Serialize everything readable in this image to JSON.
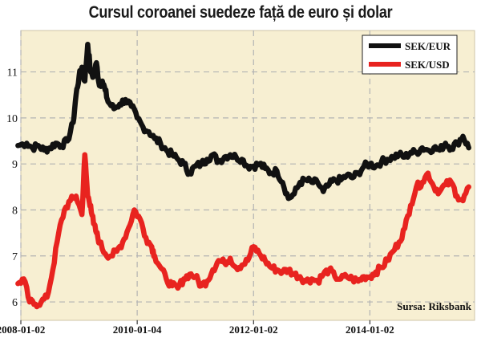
{
  "chart_data": {
    "type": "line",
    "title": "Cursul coroanei suedeze față de euro și dolar",
    "source_note": "Sursa: Riksbank",
    "xlabel": "",
    "ylabel": "",
    "x_tick_labels": [
      "2008-01-02",
      "2010-01-04",
      "2012-01-02",
      "2014-01-02"
    ],
    "y_tick_labels": [
      "6",
      "7",
      "8",
      "9",
      "10",
      "11"
    ],
    "ylim": [
      5.6,
      11.9
    ],
    "xlim": [
      2008.0,
      2015.8
    ],
    "grid": true,
    "legend_position": "top-right",
    "colors": {
      "background": "#f7efd2",
      "grid": "#b3b3b3",
      "sek_eur": "#111111",
      "sek_usd": "#e8231f"
    },
    "series": [
      {
        "name": "SEK/EUR",
        "color": "#111111",
        "x": [
          2007.95,
          2008.1,
          2008.2,
          2008.3,
          2008.4,
          2008.5,
          2008.6,
          2008.7,
          2008.8,
          2008.9,
          2008.95,
          2009.0,
          2009.05,
          2009.1,
          2009.15,
          2009.2,
          2009.25,
          2009.3,
          2009.35,
          2009.4,
          2009.45,
          2009.5,
          2009.6,
          2009.7,
          2009.8,
          2009.9,
          2010.0,
          2010.1,
          2010.2,
          2010.3,
          2010.4,
          2010.5,
          2010.6,
          2010.7,
          2010.8,
          2010.9,
          2011.0,
          2011.1,
          2011.2,
          2011.3,
          2011.4,
          2011.5,
          2011.6,
          2011.7,
          2011.8,
          2011.9,
          2012.0,
          2012.1,
          2012.2,
          2012.3,
          2012.4,
          2012.5,
          2012.6,
          2012.7,
          2012.8,
          2012.9,
          2013.0,
          2013.1,
          2013.2,
          2013.3,
          2013.4,
          2013.5,
          2013.6,
          2013.7,
          2013.8,
          2013.9,
          2014.0,
          2014.1,
          2014.2,
          2014.3,
          2014.4,
          2014.5,
          2014.6,
          2014.7,
          2014.8,
          2014.9,
          2015.0,
          2015.1,
          2015.2,
          2015.3,
          2015.4,
          2015.5,
          2015.6,
          2015.7
        ],
        "values": [
          9.4,
          9.45,
          9.35,
          9.4,
          9.3,
          9.35,
          9.45,
          9.4,
          9.5,
          9.9,
          10.5,
          10.9,
          11.1,
          10.8,
          11.6,
          11.0,
          10.9,
          11.2,
          10.7,
          10.8,
          10.6,
          10.35,
          10.2,
          10.3,
          10.4,
          10.25,
          10.0,
          9.8,
          9.7,
          9.55,
          9.45,
          9.3,
          9.2,
          9.1,
          9.0,
          8.8,
          8.95,
          9.0,
          9.1,
          9.2,
          9.05,
          9.15,
          9.2,
          9.15,
          9.1,
          8.95,
          8.95,
          9.0,
          8.9,
          8.8,
          8.85,
          8.6,
          8.25,
          8.35,
          8.6,
          8.65,
          8.6,
          8.6,
          8.4,
          8.55,
          8.65,
          8.65,
          8.75,
          8.7,
          8.8,
          8.95,
          9.0,
          8.95,
          9.05,
          9.1,
          9.15,
          9.2,
          9.15,
          9.25,
          9.25,
          9.35,
          9.3,
          9.35,
          9.3,
          9.45,
          9.35,
          9.45,
          9.6,
          9.35
        ]
      },
      {
        "name": "SEK/USD",
        "color": "#e8231f",
        "x": [
          2007.95,
          2008.05,
          2008.15,
          2008.25,
          2008.35,
          2008.45,
          2008.55,
          2008.65,
          2008.75,
          2008.85,
          2008.95,
          2009.05,
          2009.1,
          2009.15,
          2009.2,
          2009.25,
          2009.3,
          2009.35,
          2009.45,
          2009.55,
          2009.65,
          2009.75,
          2009.85,
          2009.95,
          2010.05,
          2010.15,
          2010.25,
          2010.3,
          2010.4,
          2010.5,
          2010.6,
          2010.7,
          2010.8,
          2010.9,
          2011.0,
          2011.1,
          2011.2,
          2011.3,
          2011.4,
          2011.5,
          2011.6,
          2011.7,
          2011.8,
          2011.9,
          2012.0,
          2012.1,
          2012.2,
          2012.3,
          2012.4,
          2012.5,
          2012.6,
          2012.7,
          2012.8,
          2012.9,
          2013.0,
          2013.1,
          2013.2,
          2013.3,
          2013.4,
          2013.5,
          2013.6,
          2013.7,
          2013.8,
          2013.9,
          2014.0,
          2014.1,
          2014.2,
          2014.3,
          2014.4,
          2014.5,
          2014.6,
          2014.7,
          2014.8,
          2014.9,
          2015.0,
          2015.1,
          2015.2,
          2015.3,
          2015.4,
          2015.5,
          2015.6,
          2015.7
        ],
        "values": [
          6.4,
          6.5,
          6.0,
          5.95,
          6.0,
          6.1,
          6.7,
          7.5,
          8.0,
          8.2,
          8.3,
          7.9,
          9.2,
          8.3,
          8.1,
          7.7,
          7.5,
          7.3,
          7.05,
          7.0,
          7.1,
          7.3,
          7.6,
          8.0,
          7.8,
          7.4,
          7.2,
          7.0,
          6.75,
          6.5,
          6.35,
          6.3,
          6.5,
          6.6,
          6.55,
          6.35,
          6.45,
          6.7,
          6.9,
          6.85,
          6.95,
          6.75,
          6.8,
          6.9,
          7.2,
          7.05,
          6.9,
          6.75,
          6.7,
          6.65,
          6.7,
          6.6,
          6.55,
          6.45,
          6.5,
          6.45,
          6.6,
          6.7,
          6.55,
          6.5,
          6.55,
          6.5,
          6.45,
          6.55,
          6.55,
          6.65,
          6.75,
          6.9,
          7.1,
          7.3,
          7.6,
          8.1,
          8.5,
          8.6,
          8.8,
          8.5,
          8.4,
          8.55,
          8.6,
          8.3,
          8.2,
          8.5
        ]
      }
    ]
  }
}
